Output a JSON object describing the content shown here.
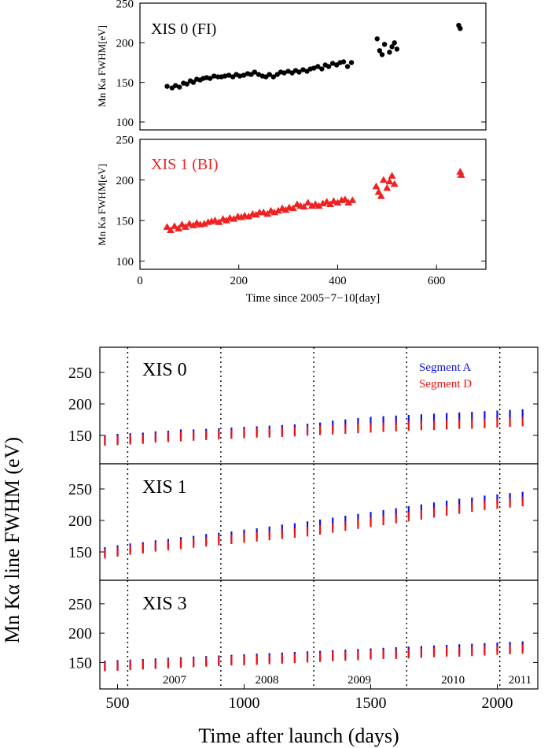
{
  "chart_data": [
    {
      "type": "scatter",
      "panel_label": "XIS 0 (FI)",
      "ylabel": "Mn Ka FWHM[eV]",
      "xlim": [
        0,
        700
      ],
      "ylim": [
        90,
        250
      ],
      "yticks": [
        100,
        150,
        200,
        250
      ],
      "color": "#000000",
      "marker": "circle",
      "series": [
        {
          "x": [
            55,
            65,
            72,
            80,
            88,
            95,
            102,
            108,
            115,
            122,
            128,
            135,
            142,
            150,
            158,
            165,
            172,
            180,
            188,
            195,
            202,
            210,
            218,
            225,
            232,
            240,
            248,
            255,
            262,
            270,
            278,
            285,
            292,
            300,
            308,
            315,
            322,
            330,
            338,
            345,
            352,
            360,
            368,
            375,
            382,
            390,
            398,
            405,
            412,
            420,
            428,
            480,
            485,
            490,
            495,
            505,
            510,
            515,
            520,
            645,
            648
          ],
          "y": [
            145,
            143,
            146,
            144,
            149,
            148,
            152,
            150,
            154,
            153,
            155,
            156,
            155,
            158,
            157,
            157,
            158,
            159,
            157,
            160,
            158,
            159,
            161,
            160,
            163,
            160,
            158,
            157,
            160,
            157,
            160,
            163,
            162,
            164,
            162,
            165,
            163,
            166,
            164,
            167,
            168,
            170,
            167,
            172,
            170,
            174,
            172,
            175,
            176,
            170,
            175,
            205,
            190,
            185,
            198,
            188,
            195,
            200,
            192,
            222,
            218
          ]
        }
      ]
    },
    {
      "type": "scatter",
      "panel_label": "XIS 1 (BI)",
      "ylabel": "Mn Ka FWHM[eV]",
      "xlabel": "Time since 2005−7−10[day]",
      "xlim": [
        0,
        700
      ],
      "ylim": [
        90,
        250
      ],
      "yticks": [
        100,
        150,
        200,
        250
      ],
      "xticks": [
        0,
        200,
        400,
        600
      ],
      "color": "#ee2222",
      "marker": "triangle",
      "series": [
        {
          "x": [
            55,
            62,
            70,
            78,
            85,
            92,
            100,
            108,
            115,
            122,
            130,
            138,
            145,
            152,
            160,
            168,
            175,
            182,
            190,
            198,
            205,
            212,
            220,
            228,
            235,
            242,
            250,
            258,
            265,
            272,
            280,
            288,
            295,
            302,
            310,
            318,
            325,
            332,
            340,
            348,
            355,
            362,
            370,
            378,
            385,
            392,
            400,
            408,
            415,
            422,
            430,
            478,
            483,
            488,
            493,
            500,
            505,
            510,
            515,
            648,
            650
          ],
          "y": [
            142,
            138,
            143,
            140,
            145,
            142,
            146,
            144,
            147,
            145,
            146,
            148,
            149,
            150,
            148,
            152,
            150,
            153,
            152,
            155,
            154,
            156,
            155,
            158,
            157,
            160,
            160,
            158,
            162,
            160,
            162,
            165,
            163,
            166,
            165,
            170,
            168,
            167,
            172,
            168,
            170,
            168,
            171,
            173,
            170,
            174,
            172,
            175,
            176,
            172,
            175,
            192,
            185,
            180,
            200,
            190,
            198,
            205,
            195,
            210,
            206
          ]
        }
      ]
    },
    {
      "type": "scatter",
      "panel_label": "XIS 0",
      "xlim": [
        430,
        2160
      ],
      "ylim": [
        105,
        290
      ],
      "yticks": [
        150,
        200,
        250
      ],
      "year_dividers": [
        540,
        908,
        1275,
        1642,
        2010
      ],
      "legend": [
        "Segment A",
        "Segment D"
      ],
      "series": [
        {
          "name": "Segment A",
          "color": "#1111dd",
          "x": [
            450,
            500,
            550,
            600,
            650,
            700,
            750,
            800,
            850,
            900,
            950,
            1000,
            1050,
            1100,
            1150,
            1200,
            1250,
            1300,
            1350,
            1400,
            1450,
            1500,
            1550,
            1600,
            1650,
            1700,
            1750,
            1800,
            1850,
            1900,
            1950,
            2000,
            2050,
            2100
          ],
          "y": [
            143,
            145,
            146,
            147,
            149,
            150,
            152,
            152,
            153,
            154,
            155,
            156,
            157,
            158,
            159,
            160,
            161,
            163,
            166,
            168,
            170,
            172,
            173,
            174,
            175,
            176,
            177,
            178,
            179,
            180,
            181,
            182,
            183,
            184
          ]
        },
        {
          "name": "Segment D",
          "color": "#ee1111",
          "x": [
            450,
            500,
            550,
            600,
            650,
            700,
            750,
            800,
            850,
            900,
            950,
            1000,
            1050,
            1100,
            1150,
            1200,
            1250,
            1300,
            1350,
            1400,
            1450,
            1500,
            1550,
            1600,
            1650,
            1700,
            1750,
            1800,
            1850,
            1900,
            1950,
            2000,
            2050,
            2100
          ],
          "y": [
            141,
            142,
            143,
            144,
            146,
            147,
            148,
            149,
            150,
            151,
            152,
            153,
            154,
            154,
            155,
            156,
            157,
            158,
            159,
            160,
            161,
            162,
            163,
            164,
            165,
            166,
            166,
            167,
            168,
            168,
            169,
            170,
            171,
            172
          ]
        }
      ]
    },
    {
      "type": "scatter",
      "panel_label": "XIS 1",
      "xlim": [
        430,
        2160
      ],
      "ylim": [
        105,
        290
      ],
      "yticks": [
        150,
        200,
        250
      ],
      "year_dividers": [
        540,
        908,
        1275,
        1642,
        2010
      ],
      "series": [
        {
          "name": "Segment A",
          "color": "#1111dd",
          "x": [
            450,
            500,
            550,
            600,
            650,
            700,
            750,
            800,
            850,
            900,
            950,
            1000,
            1050,
            1100,
            1150,
            1200,
            1250,
            1300,
            1350,
            1400,
            1450,
            1500,
            1550,
            1600,
            1650,
            1700,
            1750,
            1800,
            1850,
            1900,
            1950,
            2000,
            2050,
            2100
          ],
          "y": [
            150,
            153,
            156,
            158,
            161,
            163,
            166,
            168,
            171,
            173,
            175,
            178,
            180,
            183,
            186,
            188,
            191,
            194,
            197,
            200,
            203,
            206,
            209,
            212,
            215,
            218,
            221,
            224,
            227,
            229,
            232,
            234,
            236,
            238
          ]
        },
        {
          "name": "Segment D",
          "color": "#ee1111",
          "x": [
            450,
            500,
            550,
            600,
            650,
            700,
            750,
            800,
            850,
            900,
            950,
            1000,
            1050,
            1100,
            1150,
            1200,
            1250,
            1300,
            1350,
            1400,
            1450,
            1500,
            1550,
            1600,
            1650,
            1700,
            1750,
            1800,
            1850,
            1900,
            1950,
            2000,
            2050,
            2100
          ],
          "y": [
            147,
            150,
            153,
            155,
            158,
            160,
            162,
            164,
            166,
            168,
            170,
            172,
            174,
            176,
            178,
            180,
            182,
            185,
            188,
            191,
            194,
            197,
            200,
            203,
            206,
            209,
            212,
            215,
            218,
            221,
            224,
            226,
            228,
            230
          ]
        }
      ]
    },
    {
      "type": "scatter",
      "panel_label": "XIS 3",
      "xlabel": "Time after launch (days)",
      "xlim": [
        430,
        2160
      ],
      "ylim": [
        105,
        290
      ],
      "yticks": [
        150,
        200,
        250
      ],
      "xticks": [
        500,
        1000,
        1500,
        2000
      ],
      "year_dividers": [
        540,
        908,
        1275,
        1642,
        2010
      ],
      "year_labels": [
        {
          "text": "2007",
          "x": 725
        },
        {
          "text": "2008",
          "x": 1090
        },
        {
          "text": "2009",
          "x": 1455
        },
        {
          "text": "2010",
          "x": 1825
        },
        {
          "text": "2011",
          "x": 2090
        }
      ],
      "series": [
        {
          "name": "Segment A",
          "color": "#1111dd",
          "x": [
            450,
            500,
            550,
            600,
            650,
            700,
            750,
            800,
            850,
            900,
            950,
            1000,
            1050,
            1100,
            1150,
            1200,
            1250,
            1300,
            1350,
            1400,
            1450,
            1500,
            1550,
            1600,
            1650,
            1700,
            1750,
            1800,
            1850,
            1900,
            1950,
            2000,
            2050,
            2100
          ],
          "y": [
            145,
            146,
            147,
            148,
            149,
            150,
            151,
            152,
            153,
            154,
            155,
            156,
            157,
            158,
            159,
            160,
            161,
            162,
            163,
            164,
            165,
            166,
            167,
            168,
            169,
            170,
            171,
            172,
            173,
            174,
            175,
            176,
            177,
            178
          ]
        },
        {
          "name": "Segment D",
          "color": "#ee1111",
          "x": [
            450,
            500,
            550,
            600,
            650,
            700,
            750,
            800,
            850,
            900,
            950,
            1000,
            1050,
            1100,
            1150,
            1200,
            1250,
            1300,
            1350,
            1400,
            1450,
            1500,
            1550,
            1600,
            1650,
            1700,
            1750,
            1800,
            1850,
            1900,
            1950,
            2000,
            2050,
            2100
          ],
          "y": [
            143,
            144,
            145,
            146,
            147,
            148,
            149,
            150,
            151,
            152,
            153,
            153,
            154,
            155,
            156,
            157,
            158,
            159,
            160,
            161,
            162,
            163,
            164,
            164,
            165,
            166,
            167,
            168,
            168,
            169,
            170,
            171,
            172,
            173
          ]
        }
      ]
    }
  ],
  "lower_ylabel": "Mn Kα line FWHM (eV)"
}
